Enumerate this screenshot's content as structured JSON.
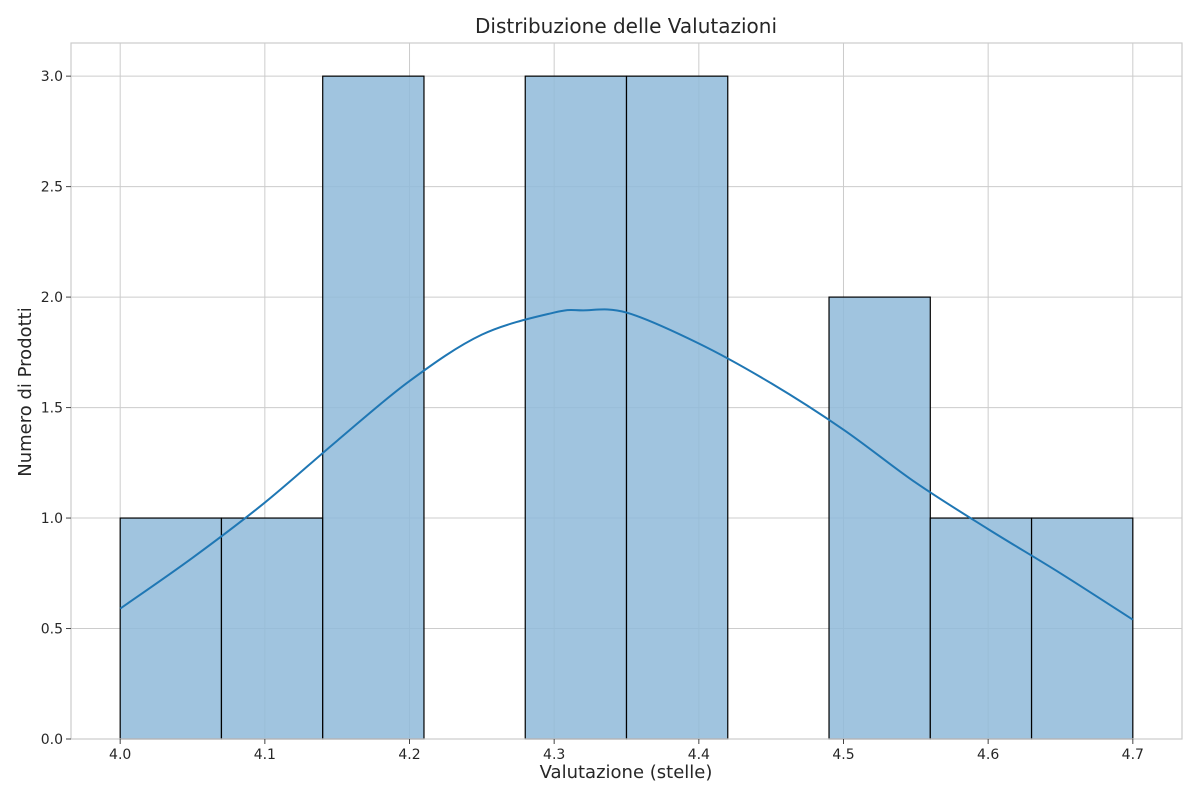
{
  "chart_data": {
    "type": "bar",
    "title": "Distribuzione delle Valutazioni",
    "xlabel": "Valutazione (stelle)",
    "ylabel": "Numero di Prodotti",
    "bin_edges": [
      4.0,
      4.07,
      4.14,
      4.21,
      4.28,
      4.35,
      4.42,
      4.49,
      4.56,
      4.63,
      4.7
    ],
    "values": [
      1,
      1,
      3,
      0,
      3,
      3,
      0,
      2,
      1,
      1
    ],
    "xlim": [
      3.966,
      4.734
    ],
    "ylim": [
      0,
      3.15
    ],
    "xticks": [
      4.0,
      4.1,
      4.2,
      4.3,
      4.4,
      4.5,
      4.6,
      4.7
    ],
    "xtick_labels": [
      "4.0",
      "4.1",
      "4.2",
      "4.3",
      "4.4",
      "4.5",
      "4.6",
      "4.7"
    ],
    "yticks": [
      0.0,
      0.5,
      1.0,
      1.5,
      2.0,
      2.5,
      3.0
    ],
    "ytick_labels": [
      "0.0",
      "0.5",
      "1.0",
      "1.5",
      "2.0",
      "2.5",
      "3.0"
    ],
    "kde": {
      "x": [
        4.0,
        4.05,
        4.1,
        4.15,
        4.2,
        4.25,
        4.3,
        4.32,
        4.35,
        4.4,
        4.45,
        4.5,
        4.55,
        4.6,
        4.65,
        4.7
      ],
      "y": [
        0.59,
        0.82,
        1.07,
        1.35,
        1.62,
        1.83,
        1.93,
        1.94,
        1.93,
        1.79,
        1.61,
        1.4,
        1.16,
        0.95,
        0.75,
        0.54
      ]
    },
    "grid": true,
    "colors": {
      "bar_fill": "#8fbad9",
      "bar_edge": "#000000",
      "kde_line": "#1f77b4",
      "grid": "#cccccc",
      "axes": "#cccccc"
    }
  }
}
